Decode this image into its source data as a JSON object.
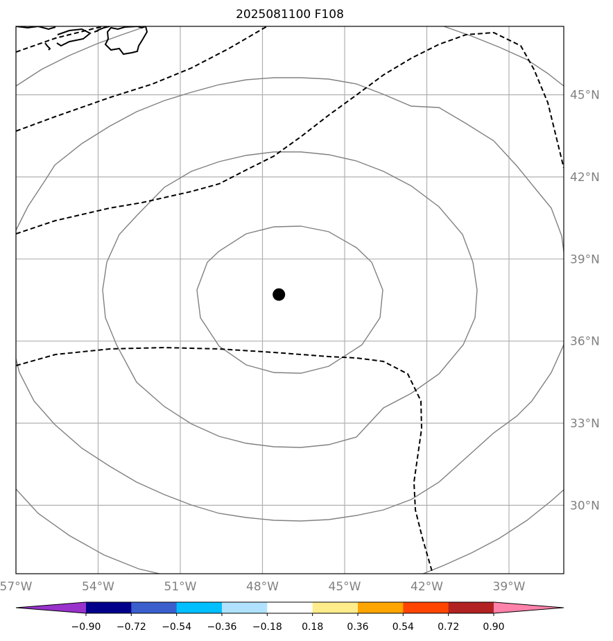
{
  "title": "2025081100 F108",
  "map": {
    "lon_range": [
      -57.0,
      -37.0
    ],
    "lat_range": [
      27.5,
      47.5
    ],
    "lon_ticks": [
      {
        "value": -57,
        "label": "57°W"
      },
      {
        "value": -54,
        "label": "54°W"
      },
      {
        "value": -51,
        "label": "51°W"
      },
      {
        "value": -48,
        "label": "48°W"
      },
      {
        "value": -45,
        "label": "45°W"
      },
      {
        "value": -42,
        "label": "42°W"
      },
      {
        "value": -39,
        "label": "39°W"
      }
    ],
    "lat_ticks": [
      {
        "value": 45,
        "label": "45°N"
      },
      {
        "value": 42,
        "label": "42°N"
      },
      {
        "value": 39,
        "label": "39°N"
      },
      {
        "value": 36,
        "label": "36°N"
      },
      {
        "value": 33,
        "label": "33°N"
      },
      {
        "value": 30,
        "label": "30°N"
      }
    ],
    "center_marker": {
      "lon": -47.4,
      "lat": 37.7
    },
    "colors": {
      "gridline": "#b0b0b0",
      "solid_contour": "#808080",
      "dashed_contour": "#000000",
      "coastline": "#000000",
      "marker": "#000000"
    }
  },
  "colorbar": {
    "tick_labels": [
      "−0.90",
      "−0.72",
      "−0.54",
      "−0.36",
      "−0.18",
      "0.18",
      "0.36",
      "0.54",
      "0.72",
      "0.90"
    ],
    "colors": [
      "#9932cc",
      "#00008b",
      "#3a5fcd",
      "#00bfff",
      "#b0e2ff",
      "#ffffff",
      "#ffec8b",
      "#ffa500",
      "#ff4500",
      "#b22222",
      "#ff82ab"
    ]
  }
}
